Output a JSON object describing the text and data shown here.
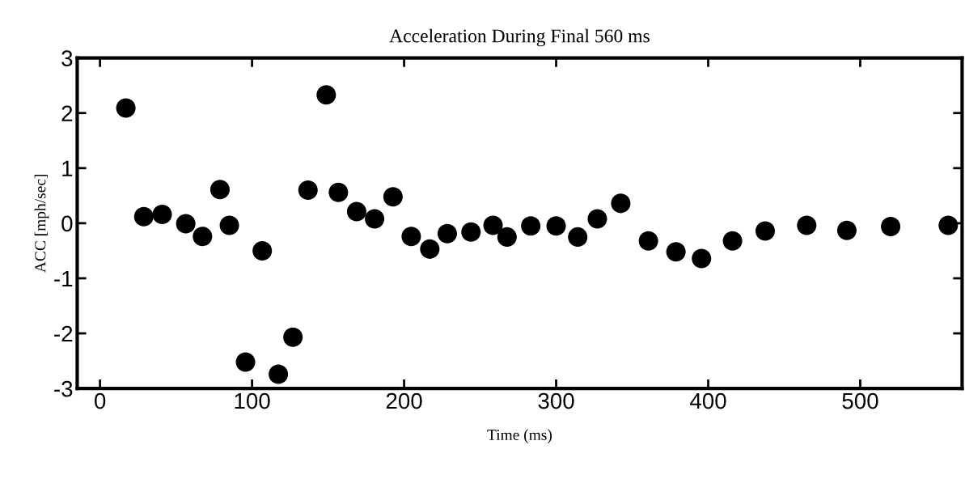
{
  "chart_data": {
    "type": "scatter",
    "title": "Acceleration During Final 560 ms",
    "xlabel": "Time (ms)",
    "ylabel": "ACC [mph/sec]",
    "x": [
      17,
      28.8,
      40.9,
      56.4,
      67.4,
      78.9,
      85.1,
      95.7,
      106.7,
      117.3,
      126.9,
      136.8,
      148.8,
      156.8,
      168.8,
      180.6,
      192.7,
      204.7,
      216.9,
      228.4,
      244,
      258.5,
      267.7,
      283.3,
      300,
      314.2,
      327.1,
      342.5,
      360.7,
      378.8,
      395.6,
      416,
      437.5,
      464.8,
      491.2,
      520,
      557.9
    ],
    "series": [
      {
        "color": "#000000",
        "values": [
          2.09,
          0.12,
          0.16,
          -0.01,
          -0.24,
          0.61,
          -0.04,
          -2.52,
          -0.5,
          -2.74,
          -2.07,
          0.6,
          2.33,
          0.56,
          0.21,
          0.08,
          0.48,
          -0.24,
          -0.47,
          -0.19,
          -0.16,
          -0.04,
          -0.25,
          -0.05,
          -0.05,
          -0.25,
          0.08,
          0.36,
          -0.32,
          -0.52,
          -0.64,
          -0.32,
          -0.14,
          -0.04,
          -0.13,
          -0.06,
          -0.04
        ]
      }
    ],
    "marker": "circle",
    "xlim": [
      -15,
      567
    ],
    "xticks": [
      0,
      100,
      200,
      300,
      400,
      500
    ],
    "ylim": [
      -3,
      3
    ],
    "yticks": [
      -3,
      -2,
      -1,
      0,
      1,
      2,
      3
    ],
    "grid": false,
    "legend": false
  }
}
